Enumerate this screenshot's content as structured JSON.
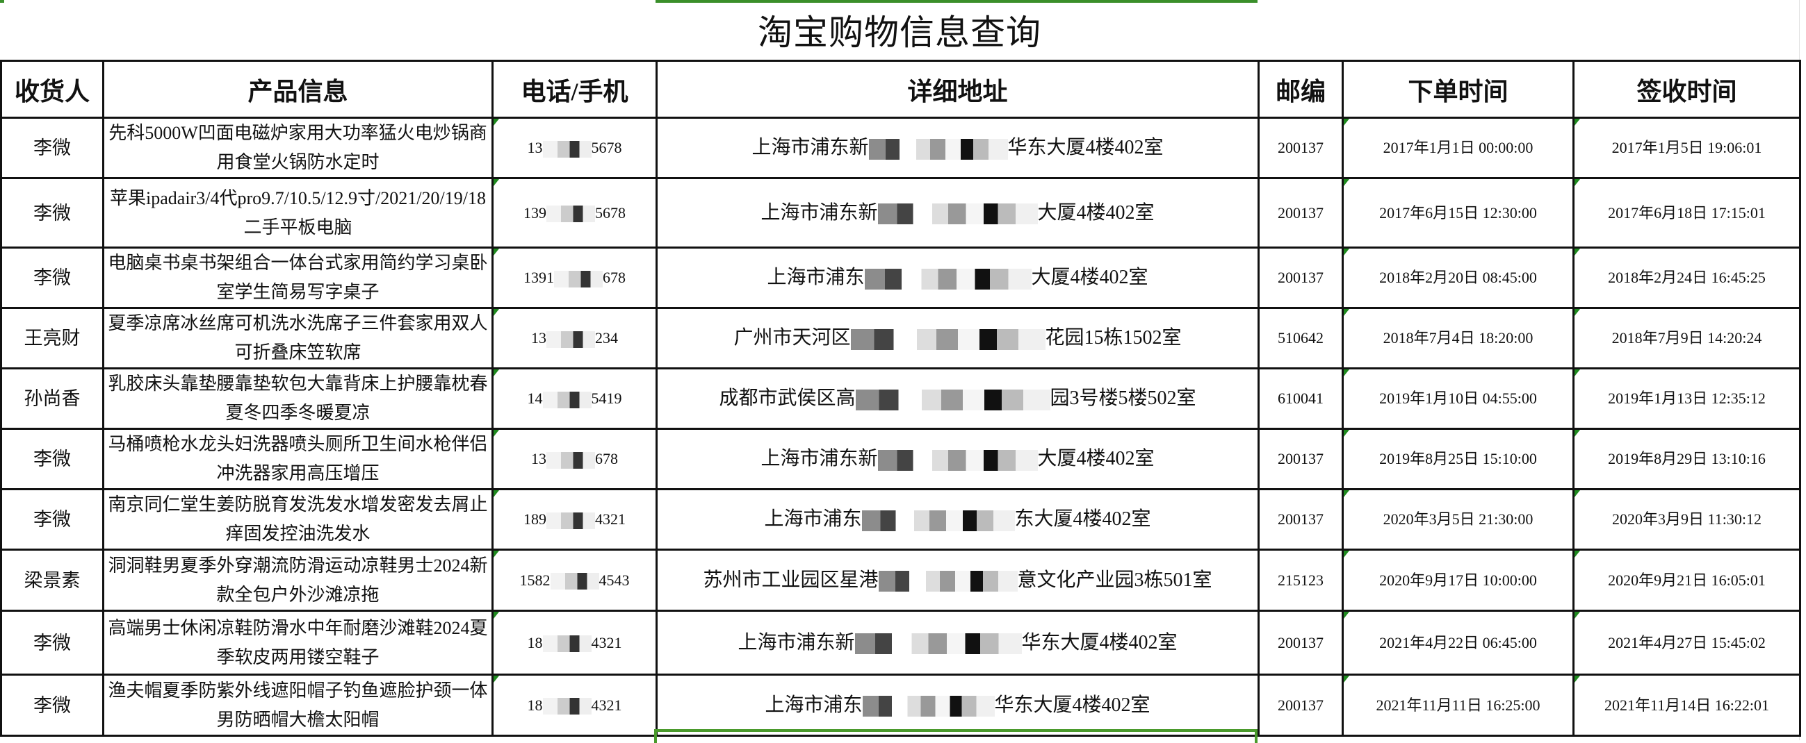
{
  "title": "淘宝购物信息查询",
  "colors": {
    "selection_green": "#3a8f2a",
    "indicator_green": "#1f8a1f"
  },
  "headers": [
    "收货人",
    "产品信息",
    "电话/手机",
    "详细地址",
    "邮编",
    "下单时间",
    "签收时间"
  ],
  "rows": [
    {
      "name": "李微",
      "product": "先科5000W凹面电磁炉家用大功率猛火电炒锅商用食堂火锅防水定时",
      "phone_pre": "13",
      "phone_post": "5678",
      "addr_pre": "上海市浦东新",
      "addr_post": "华东大厦4楼402室",
      "zip": "200137",
      "order_time": "2017年1月1日 00:00:00",
      "sign_time": "2017年1月5日 19:06:01"
    },
    {
      "name": "李微",
      "product": "苹果ipadair3/4代pro9.7/10.5/12.9寸/2021/20/19/18二手平板电脑",
      "phone_pre": "139",
      "phone_post": "5678",
      "addr_pre": "上海市浦东新",
      "addr_post": "大厦4楼402室",
      "zip": "200137",
      "order_time": "2017年6月15日 12:30:00",
      "sign_time": "2017年6月18日 17:15:01"
    },
    {
      "name": "李微",
      "product": "电脑桌书桌书架组合一体台式家用简约学习桌卧室学生简易写字桌子",
      "phone_pre": "1391",
      "phone_post": "678",
      "addr_pre": "上海市浦东",
      "addr_post": "大厦4楼402室",
      "zip": "200137",
      "order_time": "2018年2月20日 08:45:00",
      "sign_time": "2018年2月24日 16:45:25"
    },
    {
      "name": "王亮财",
      "product": "夏季凉席冰丝席可机洗水洗席子三件套家用双人可折叠床笠软席",
      "phone_pre": "13",
      "phone_post": "234",
      "addr_pre": "广州市天河区",
      "addr_post": "花园15栋1502室",
      "zip": "510642",
      "order_time": "2018年7月4日 18:20:00",
      "sign_time": "2018年7月9日 14:20:24"
    },
    {
      "name": "孙尚香",
      "product": "乳胶床头靠垫腰靠垫软包大靠背床上护腰靠枕春夏冬四季冬暖夏凉",
      "phone_pre": "14",
      "phone_post": "5419",
      "addr_pre": "成都市武侯区高",
      "addr_post": "园3号楼5楼502室",
      "zip": "610041",
      "order_time": "2019年1月10日 04:55:00",
      "sign_time": "2019年1月13日 12:35:12"
    },
    {
      "name": "李微",
      "product": "马桶喷枪水龙头妇洗器喷头厕所卫生间水枪伴侣冲洗器家用高压增压",
      "phone_pre": "13",
      "phone_post": "678",
      "addr_pre": "上海市浦东新",
      "addr_post": "大厦4楼402室",
      "zip": "200137",
      "order_time": "2019年8月25日 15:10:00",
      "sign_time": "2019年8月29日 13:10:16"
    },
    {
      "name": "李微",
      "product": "南京同仁堂生姜防脱育发洗发水增发密发去屑止痒固发控油洗发水",
      "phone_pre": "189",
      "phone_post": "4321",
      "addr_pre": "上海市浦东",
      "addr_post": "东大厦4楼402室",
      "zip": "200137",
      "order_time": "2020年3月5日 21:30:00",
      "sign_time": "2020年3月9日 11:30:12"
    },
    {
      "name": "梁景素",
      "product": "洞洞鞋男夏季外穿潮流防滑运动凉鞋男士2024新款全包户外沙滩凉拖",
      "phone_pre": "1582",
      "phone_post": "4543",
      "addr_pre": "苏州市工业园区星港",
      "addr_post": "意文化产业园3栋501室",
      "zip": "215123",
      "order_time": "2020年9月17日 10:00:00",
      "sign_time": "2020年9月21日 16:05:01"
    },
    {
      "name": "李微",
      "product": "高端男士休闲凉鞋防滑水中年耐磨沙滩鞋2024夏季软皮两用镂空鞋子",
      "phone_pre": "18",
      "phone_post": "4321",
      "addr_pre": "上海市浦东新",
      "addr_post": "华东大厦4楼402室",
      "zip": "200137",
      "order_time": "2021年4月22日 06:45:00",
      "sign_time": "2021年4月27日 15:45:02"
    },
    {
      "name": "李微",
      "product": "渔夫帽夏季防紫外线遮阳帽子钓鱼遮脸护颈一体男防晒帽大檐太阳帽",
      "phone_pre": "18",
      "phone_post": "4321",
      "addr_pre": "上海市浦东",
      "addr_post": "华东大厦4楼402室",
      "zip": "200137",
      "order_time": "2021年11月11日 16:25:00",
      "sign_time": "2021年11月14日 16:22:01"
    }
  ]
}
